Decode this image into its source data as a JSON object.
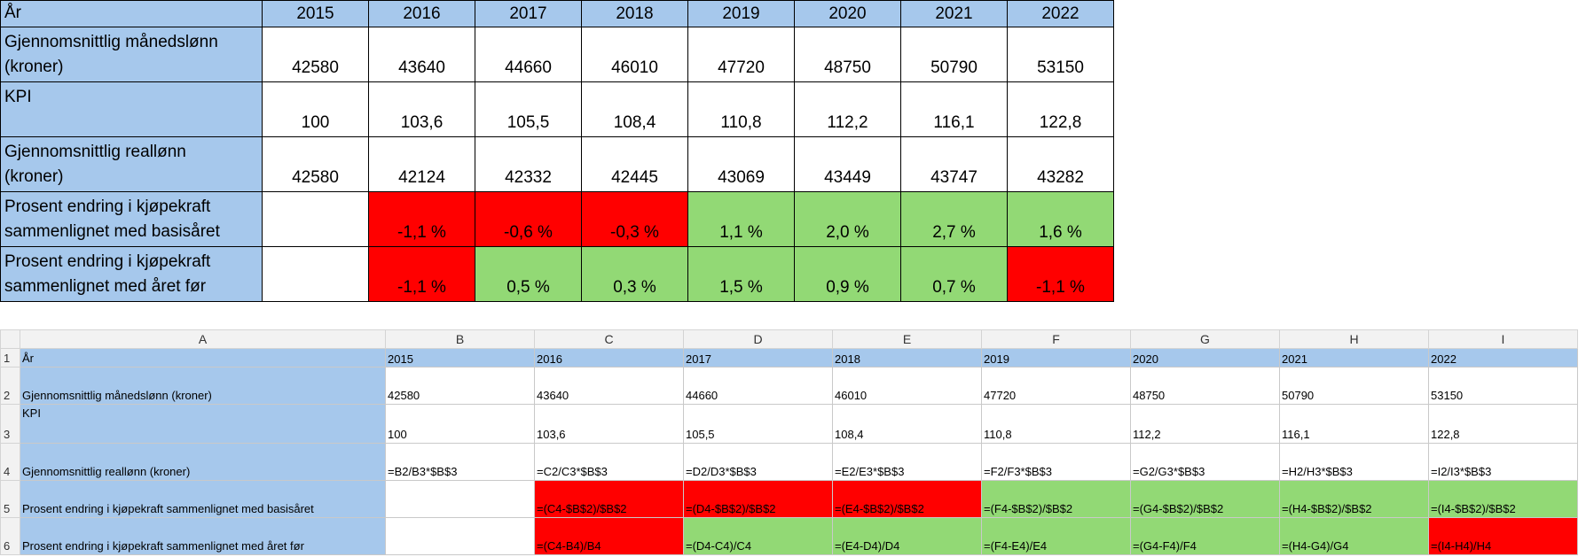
{
  "top_table": {
    "header_label": "År",
    "years": [
      "2015",
      "2016",
      "2017",
      "2018",
      "2019",
      "2020",
      "2021",
      "2022"
    ],
    "rows": [
      {
        "label": [
          "Gjennomsnittlig månedslønn",
          "(kroner)"
        ],
        "values": [
          "42580",
          "43640",
          "44660",
          "46010",
          "47720",
          "48750",
          "50790",
          "53150"
        ]
      },
      {
        "label": [
          "KPI"
        ],
        "values": [
          "100",
          "103,6",
          "105,5",
          "108,4",
          "110,8",
          "112,2",
          "116,1",
          "122,8"
        ]
      },
      {
        "label": [
          "Gjennomsnittlig reallønn",
          "(kroner)"
        ],
        "values": [
          "42580",
          "42124",
          "42332",
          "42445",
          "43069",
          "43449",
          "43747",
          "43282"
        ]
      },
      {
        "label": [
          "Prosent endring i kjøpekraft",
          "sammenlignet med basisåret"
        ],
        "values": [
          "",
          "-1,1 %",
          "-0,6 %",
          "-0,3 %",
          "1,1 %",
          "2,0 %",
          "2,7 %",
          "1,6 %"
        ],
        "status": [
          "blank",
          "red",
          "red",
          "red",
          "green",
          "green",
          "green",
          "green"
        ]
      },
      {
        "label": [
          "Prosent endring i kjøpekraft",
          "sammenlignet med året før"
        ],
        "values": [
          "",
          "-1,1 %",
          "0,5 %",
          "0,3 %",
          "1,5 %",
          "0,9 %",
          "0,7 %",
          "-1,1 %"
        ],
        "status": [
          "blank",
          "red",
          "green",
          "green",
          "green",
          "green",
          "green",
          "red"
        ]
      }
    ]
  },
  "sheet": {
    "columns": [
      "A",
      "B",
      "C",
      "D",
      "E",
      "F",
      "G",
      "H",
      "I"
    ],
    "rows": [
      {
        "num": "1",
        "label": "År",
        "values": [
          "2015",
          "2016",
          "2017",
          "2018",
          "2019",
          "2020",
          "2021",
          "2022"
        ]
      },
      {
        "num": "2",
        "label": "Gjennomsnittlig månedslønn (kroner)",
        "values": [
          "42580",
          "43640",
          "44660",
          "46010",
          "47720",
          "48750",
          "50790",
          "53150"
        ]
      },
      {
        "num": "3",
        "label": "KPI",
        "values": [
          "100",
          "103,6",
          "105,5",
          "108,4",
          "110,8",
          "112,2",
          "116,1",
          "122,8"
        ]
      },
      {
        "num": "4",
        "label": "Gjennomsnittlig reallønn (kroner)",
        "values": [
          "=B2/B3*$B$3",
          "=C2/C3*$B$3",
          "=D2/D3*$B$3",
          "=E2/E3*$B$3",
          "=F2/F3*$B$3",
          "=G2/G3*$B$3",
          "=H2/H3*$B$3",
          "=I2/I3*$B$3"
        ]
      },
      {
        "num": "5",
        "label": "Prosent endring i kjøpekraft sammenlignet med basisåret",
        "values": [
          "",
          "=(C4-$B$2)/$B$2",
          "=(D4-$B$2)/$B$2",
          "=(E4-$B$2)/$B$2",
          "=(F4-$B$2)/$B$2",
          "=(G4-$B$2)/$B$2",
          "=(H4-$B$2)/$B$2",
          "=(I4-$B$2)/$B$2"
        ],
        "status": [
          "blank",
          "red",
          "red",
          "red",
          "green",
          "green",
          "green",
          "green"
        ]
      },
      {
        "num": "6",
        "label": "Prosent endring i kjøpekraft sammenlignet med året før",
        "values": [
          "",
          "=(C4-B4)/B4",
          "=(D4-C4)/C4",
          "=(E4-D4)/D4",
          "=(F4-E4)/E4",
          "=(G4-F4)/F4",
          "=(H4-G4)/G4",
          "=(I4-H4)/H4"
        ],
        "status": [
          "blank",
          "red",
          "green",
          "green",
          "green",
          "green",
          "green",
          "red"
        ]
      }
    ]
  },
  "colors": {
    "header_blue": "#a6c8ec",
    "negative_red": "#ff0000",
    "positive_green": "#92d975"
  }
}
